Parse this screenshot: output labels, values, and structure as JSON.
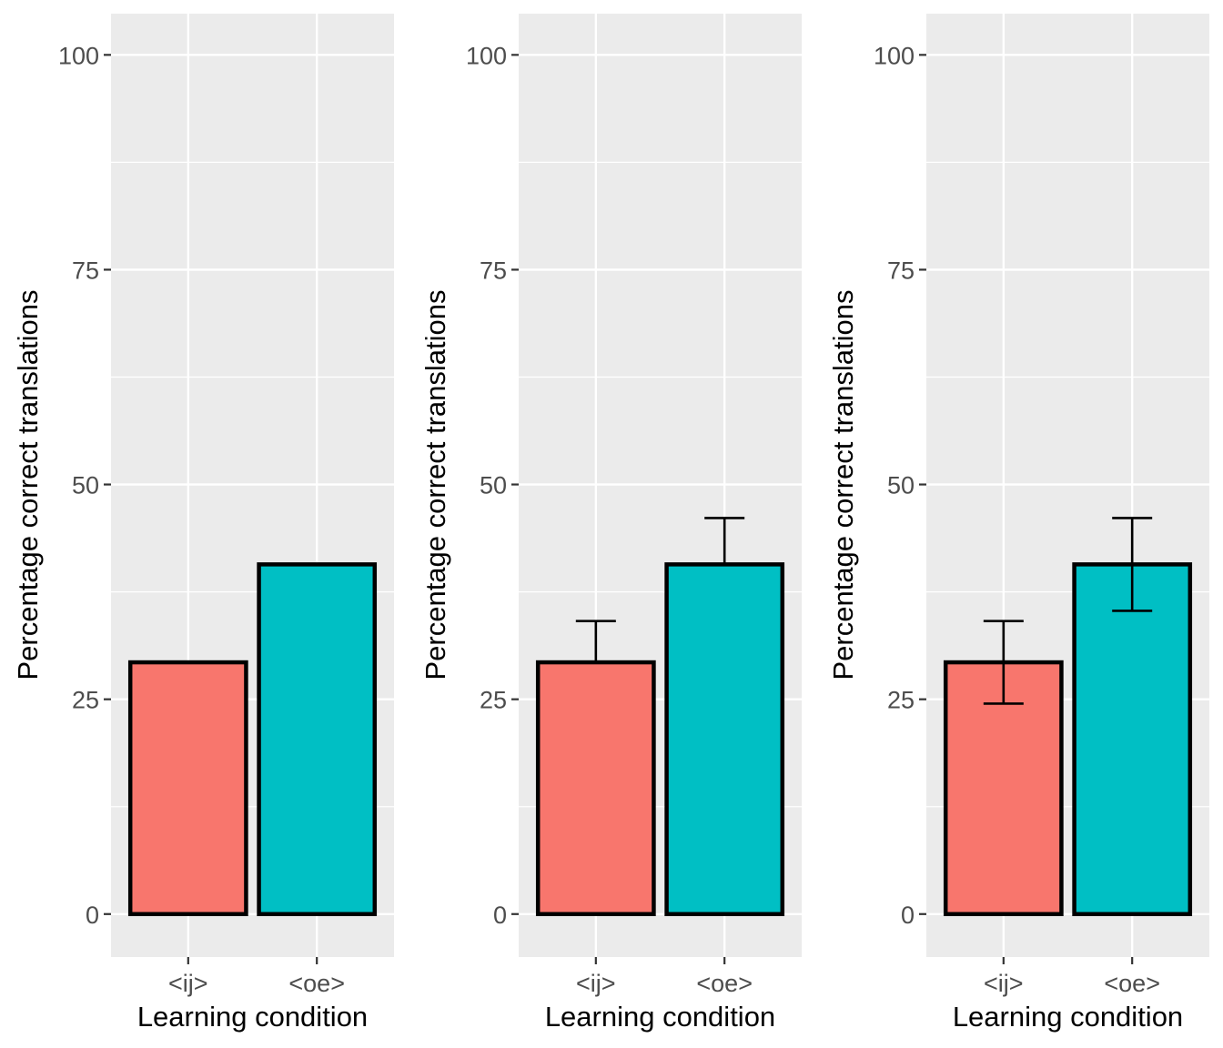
{
  "chart_data": [
    {
      "type": "bar",
      "categories": [
        "<ij>",
        "<oe>"
      ],
      "values": [
        29.3,
        40.7
      ],
      "error_bars": null,
      "colors": [
        "#F8766D",
        "#00BFC4"
      ],
      "bar_outline": "#000000",
      "xlabel": "Learning condition",
      "ylabel": "Percentage correct translations",
      "ylim": [
        -5,
        104.8
      ],
      "yticks": [
        0,
        25,
        50,
        75,
        100
      ],
      "grid": true,
      "legend": "none"
    },
    {
      "type": "bar",
      "categories": [
        "<ij>",
        "<oe>"
      ],
      "values": [
        29.3,
        40.7
      ],
      "error_bars": [
        {
          "upper": 34.1
        },
        {
          "upper": 46.1
        }
      ],
      "colors": [
        "#F8766D",
        "#00BFC4"
      ],
      "bar_outline": "#000000",
      "xlabel": "Learning condition",
      "ylabel": "Percentage correct translations",
      "ylim": [
        -5,
        104.8
      ],
      "yticks": [
        0,
        25,
        50,
        75,
        100
      ],
      "grid": true,
      "legend": "none"
    },
    {
      "type": "bar",
      "categories": [
        "<ij>",
        "<oe>"
      ],
      "values": [
        29.3,
        40.7
      ],
      "error_bars": [
        {
          "lower": 24.5,
          "upper": 34.1
        },
        {
          "lower": 35.3,
          "upper": 46.1
        }
      ],
      "colors": [
        "#F8766D",
        "#00BFC4"
      ],
      "bar_outline": "#000000",
      "xlabel": "Learning condition",
      "ylabel": "Percentage correct translations",
      "ylim": [
        -5,
        104.8
      ],
      "yticks": [
        0,
        25,
        50,
        75,
        100
      ],
      "grid": true,
      "legend": "none"
    }
  ]
}
